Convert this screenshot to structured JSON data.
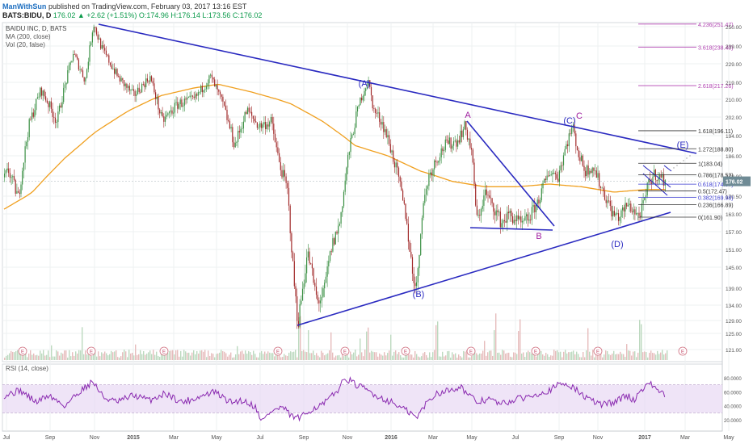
{
  "header": {
    "user": "ManWithSun",
    "published": "published on TradingView.com, February 03, 2017 13:16 EST",
    "symbol": "BATS:BIDU, D",
    "quote": "176.02 ▲ +2.62 (+1.51%) O:174.96 H:176.14 L:173.56 C:176.02"
  },
  "legend": {
    "title": "BAIDU INC, D, BATS",
    "ma": "MA (200, close)",
    "vol": "Vol (20, false)",
    "rsi": "RSI (14, close)"
  },
  "colors": {
    "price_up": "#3a8f43",
    "price_down": "#a12a2a",
    "ma": "#f0a020",
    "trendline": "#2a2ac0",
    "labels_blue": "#2a2ac0",
    "labels_purple": "#a020a0",
    "fib": "#333333",
    "fib_ext": "#b040b0",
    "rsi": "#8a2ab0",
    "rsi_band": "#e8d9f3",
    "current": "#6f8b95"
  },
  "chart_data": {
    "type": "candlestick",
    "x_ticks": [
      "Jul",
      "Sep",
      "Nov",
      "2015",
      "Mar",
      "May",
      "Jul",
      "Sep",
      "Nov",
      "2016",
      "Mar",
      "May",
      "Jul",
      "Sep",
      "Nov",
      "2017",
      "Mar",
      "May"
    ],
    "y_ticks": [
      121.0,
      125.0,
      129.0,
      134.0,
      139.0,
      145.0,
      151.0,
      157.0,
      163.0,
      170.5,
      178.0,
      186.0,
      194.0,
      202.0,
      210.0,
      219.0,
      229.0,
      239.0,
      250.0
    ],
    "current_price": "176.02",
    "fib_levels": [
      {
        "label": "0(161.90)",
        "value": 161.9
      },
      {
        "label": "0.236(166.89)",
        "value": 166.89
      },
      {
        "label": "0.382(169.98)",
        "value": 169.98
      },
      {
        "label": "0.5(172.47)",
        "value": 172.47
      },
      {
        "label": "0.618(174.97)",
        "value": 174.97
      },
      {
        "label": "0.786(178.52)",
        "value": 178.52
      },
      {
        "label": "1(183.04)",
        "value": 183.04
      },
      {
        "label": "1.272(188.80)",
        "value": 188.8
      },
      {
        "label": "1.618(196.11)",
        "value": 196.11
      }
    ],
    "fib_extensions": [
      {
        "label": "2.618(217.26)",
        "value": 217.26
      },
      {
        "label": "3.618(238.40)",
        "value": 238.4
      },
      {
        "label": "4.236(251.47)",
        "value": 251.47
      }
    ],
    "wave_labels": [
      "(A)",
      "(B)",
      "(C)",
      "(D)",
      "(E)",
      "A",
      "B",
      "C"
    ],
    "earnings_marker": "E",
    "rsi_ticks": [
      "80.0000",
      "60.0000",
      "40.0000",
      "20.0000"
    ],
    "rsi_band": [
      30,
      70
    ],
    "price_anchors": [
      [
        0,
        175
      ],
      [
        10,
        180
      ],
      [
        22,
        170
      ],
      [
        35,
        198
      ],
      [
        50,
        215
      ],
      [
        70,
        200
      ],
      [
        90,
        235
      ],
      [
        105,
        220
      ],
      [
        115,
        252
      ],
      [
        125,
        238
      ],
      [
        145,
        222
      ],
      [
        165,
        212
      ],
      [
        185,
        222
      ],
      [
        200,
        200
      ],
      [
        220,
        208
      ],
      [
        240,
        210
      ],
      [
        260,
        222
      ],
      [
        275,
        208
      ],
      [
        290,
        190
      ],
      [
        305,
        205
      ],
      [
        320,
        198
      ],
      [
        335,
        200
      ],
      [
        345,
        183
      ],
      [
        355,
        173
      ],
      [
        362,
        145
      ],
      [
        368,
        128
      ],
      [
        380,
        150
      ],
      [
        392,
        135
      ],
      [
        400,
        137
      ],
      [
        410,
        152
      ],
      [
        420,
        160
      ],
      [
        430,
        185
      ],
      [
        440,
        202
      ],
      [
        448,
        213
      ],
      [
        455,
        220
      ],
      [
        462,
        205
      ],
      [
        472,
        200
      ],
      [
        482,
        190
      ],
      [
        492,
        178
      ],
      [
        502,
        162
      ],
      [
        510,
        143
      ],
      [
        516,
        140
      ],
      [
        522,
        165
      ],
      [
        530,
        178
      ],
      [
        540,
        185
      ],
      [
        550,
        190
      ],
      [
        565,
        192
      ],
      [
        575,
        198
      ],
      [
        583,
        188
      ],
      [
        590,
        160
      ],
      [
        600,
        172
      ],
      [
        610,
        166
      ],
      [
        620,
        160
      ],
      [
        630,
        163
      ],
      [
        645,
        159
      ],
      [
        655,
        162
      ],
      [
        665,
        168
      ],
      [
        672,
        174
      ],
      [
        680,
        180
      ],
      [
        690,
        178
      ],
      [
        700,
        190
      ],
      [
        708,
        198
      ],
      [
        716,
        186
      ],
      [
        724,
        180
      ],
      [
        733,
        182
      ],
      [
        742,
        175
      ],
      [
        752,
        168
      ],
      [
        758,
        163
      ],
      [
        766,
        162
      ],
      [
        776,
        167
      ],
      [
        785,
        164
      ],
      [
        790,
        162
      ],
      [
        796,
        167
      ],
      [
        802,
        175
      ],
      [
        810,
        179
      ],
      [
        818,
        177
      ],
      [
        824,
        176
      ]
    ],
    "ma_anchors": [
      [
        5,
        165
      ],
      [
        40,
        172
      ],
      [
        80,
        185
      ],
      [
        120,
        196
      ],
      [
        160,
        205
      ],
      [
        200,
        212
      ],
      [
        240,
        216
      ],
      [
        270,
        218
      ],
      [
        310,
        214
      ],
      [
        360,
        208
      ],
      [
        400,
        200
      ],
      [
        440,
        190
      ],
      [
        480,
        186
      ],
      [
        520,
        180
      ],
      [
        560,
        176
      ],
      [
        600,
        174
      ],
      [
        640,
        174
      ],
      [
        680,
        175
      ],
      [
        720,
        174
      ],
      [
        760,
        172
      ],
      [
        800,
        173
      ],
      [
        824,
        173
      ]
    ],
    "rsi_anchors": [
      [
        5,
        55
      ],
      [
        25,
        62
      ],
      [
        45,
        45
      ],
      [
        60,
        55
      ],
      [
        80,
        40
      ],
      [
        100,
        62
      ],
      [
        115,
        75
      ],
      [
        128,
        52
      ],
      [
        145,
        45
      ],
      [
        165,
        55
      ],
      [
        185,
        48
      ],
      [
        205,
        58
      ],
      [
        225,
        45
      ],
      [
        245,
        52
      ],
      [
        265,
        60
      ],
      [
        285,
        45
      ],
      [
        300,
        48
      ],
      [
        315,
        40
      ],
      [
        325,
        18
      ],
      [
        335,
        32
      ],
      [
        350,
        38
      ],
      [
        360,
        25
      ],
      [
        372,
        22
      ],
      [
        385,
        35
      ],
      [
        400,
        42
      ],
      [
        415,
        58
      ],
      [
        428,
        80
      ],
      [
        440,
        70
      ],
      [
        455,
        62
      ],
      [
        470,
        52
      ],
      [
        485,
        45
      ],
      [
        500,
        35
      ],
      [
        510,
        28
      ],
      [
        516,
        22
      ],
      [
        525,
        40
      ],
      [
        540,
        58
      ],
      [
        555,
        62
      ],
      [
        570,
        68
      ],
      [
        580,
        55
      ],
      [
        590,
        45
      ],
      [
        605,
        50
      ],
      [
        620,
        42
      ],
      [
        635,
        48
      ],
      [
        650,
        52
      ],
      [
        665,
        58
      ],
      [
        680,
        62
      ],
      [
        695,
        72
      ],
      [
        705,
        70
      ],
      [
        718,
        58
      ],
      [
        730,
        48
      ],
      [
        745,
        42
      ],
      [
        760,
        45
      ],
      [
        775,
        55
      ],
      [
        785,
        48
      ],
      [
        795,
        65
      ],
      [
        802,
        72
      ],
      [
        810,
        68
      ],
      [
        818,
        58
      ],
      [
        824,
        55
      ]
    ]
  }
}
